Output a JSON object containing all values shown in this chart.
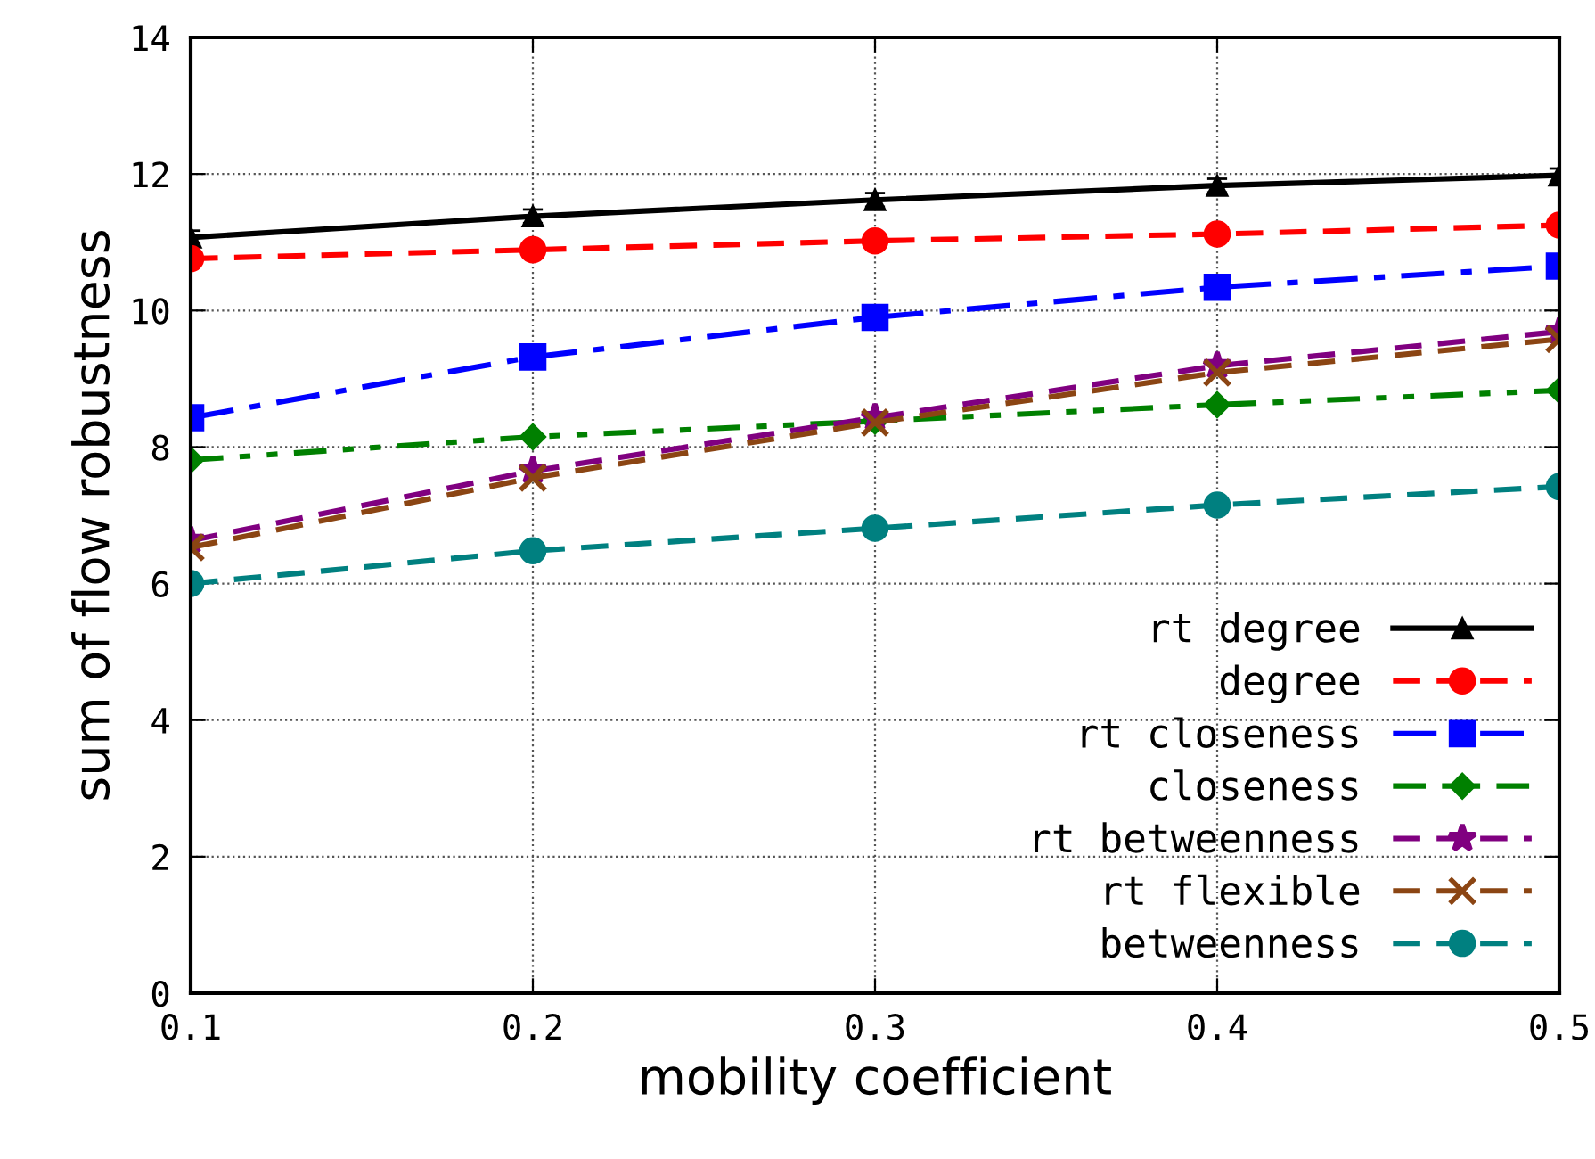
{
  "chart_data": {
    "type": "line",
    "xlabel": "mobility coefficient",
    "ylabel": "sum of flow robustness",
    "x": [
      0.1,
      0.2,
      0.3,
      0.4,
      0.5
    ],
    "xlim": [
      0.1,
      0.5
    ],
    "xticks": [
      0.1,
      0.2,
      0.3,
      0.4,
      0.5
    ],
    "ylim": [
      0,
      14
    ],
    "yticks": [
      0,
      2,
      4,
      6,
      8,
      10,
      12,
      14
    ],
    "grid": true,
    "legend": "bottom right",
    "series": [
      {
        "name": "rt degree",
        "color": "#000000",
        "marker": "triangle",
        "line_style": "solid",
        "values": [
          11.07,
          11.38,
          11.62,
          11.83,
          11.98
        ],
        "errors": [
          0.1,
          0.1,
          0.1,
          0.1,
          0.1
        ]
      },
      {
        "name": "degree",
        "color": "#ff0000",
        "marker": "circle",
        "line_style": "dashed",
        "values": [
          10.76,
          10.89,
          11.02,
          11.12,
          11.25
        ]
      },
      {
        "name": "rt closeness",
        "color": "#0000ff",
        "marker": "square",
        "line_style": "dashdot",
        "values": [
          8.43,
          9.32,
          9.9,
          10.34,
          10.65
        ]
      },
      {
        "name": "closeness",
        "color": "#008000",
        "marker": "diamond",
        "line_style": "dashdotdot",
        "values": [
          7.81,
          8.15,
          8.38,
          8.62,
          8.83
        ]
      },
      {
        "name": "rt betweenness",
        "color": "#800080",
        "marker": "star",
        "line_style": "dashed",
        "values": [
          6.63,
          7.65,
          8.43,
          9.19,
          9.69
        ]
      },
      {
        "name": "rt flexible",
        "color": "#8b4513",
        "marker": "cross",
        "line_style": "dashed",
        "values": [
          6.53,
          7.55,
          8.36,
          9.09,
          9.58
        ]
      },
      {
        "name": "betweenness",
        "color": "#008080",
        "marker": "circle",
        "line_style": "dashed",
        "values": [
          6.0,
          6.48,
          6.81,
          7.15,
          7.42
        ]
      }
    ]
  }
}
